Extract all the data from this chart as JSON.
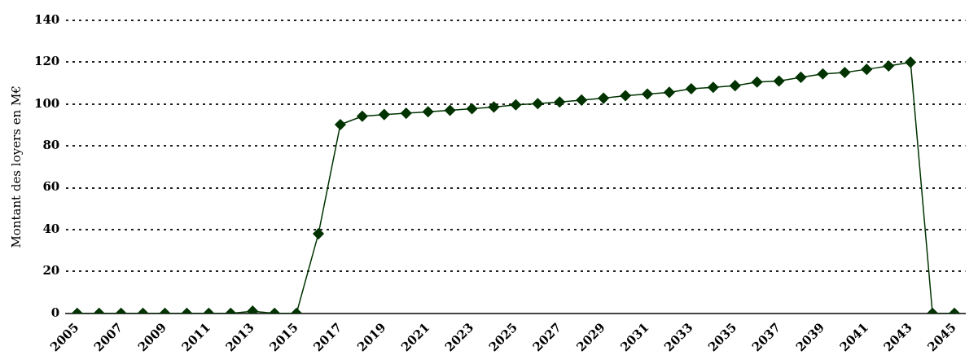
{
  "chart_data": {
    "type": "line",
    "ylabel": "Montant des loyers en M€",
    "categories": [
      "2005",
      null,
      "2007",
      null,
      "2009",
      null,
      "2011",
      null,
      "2013",
      null,
      "2015",
      null,
      "2017",
      null,
      "2019",
      null,
      "2021",
      null,
      "2023",
      null,
      "2025",
      null,
      "2027",
      null,
      "2029",
      null,
      "2031",
      null,
      "2033",
      null,
      "2035",
      null,
      "2037",
      null,
      "2039",
      null,
      "2041",
      null,
      "2043",
      null,
      "2045"
    ],
    "series": [
      {
        "color": "#003300",
        "values": [
          0,
          0,
          0,
          0,
          0,
          0,
          0,
          0,
          1,
          0,
          0,
          38,
          90.2,
          94.2,
          95,
          95.6,
          96.3,
          97,
          97.8,
          98.6,
          99.6,
          100.2,
          101,
          101.9,
          102.8,
          104,
          104.8,
          105.6,
          107.3,
          108,
          108.8,
          110.5,
          111,
          112.8,
          114.4,
          115.1,
          116.6,
          118.2,
          120,
          0,
          0
        ]
      }
    ],
    "ylim": [
      0,
      140
    ],
    "yticks": [
      0,
      20,
      40,
      60,
      80,
      100,
      120,
      140
    ],
    "grid": "y",
    "legend": false,
    "marker": "diamond",
    "line_style": "solid"
  }
}
